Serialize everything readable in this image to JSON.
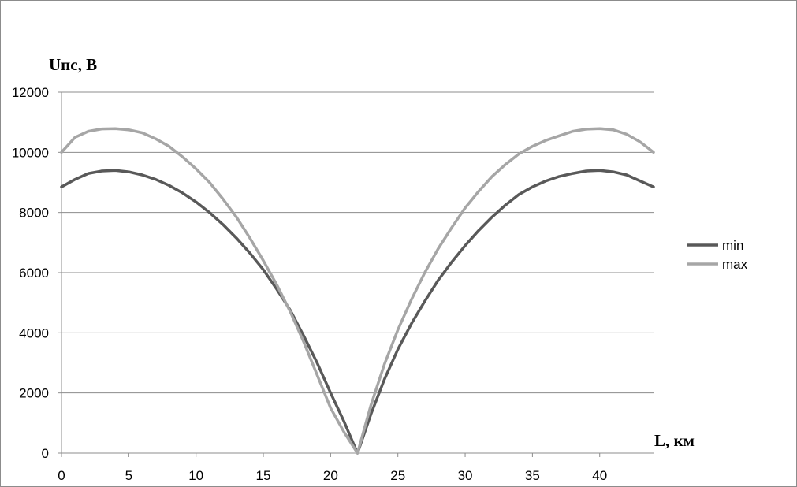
{
  "chart_data": {
    "type": "line",
    "title": "",
    "ylabel": "Uпс, В",
    "xlabel": "L, км",
    "xlim": [
      0,
      44
    ],
    "ylim": [
      0,
      12000
    ],
    "x_ticks": [
      0,
      5,
      10,
      15,
      20,
      25,
      30,
      35,
      40
    ],
    "y_ticks": [
      0,
      2000,
      4000,
      6000,
      8000,
      10000,
      12000
    ],
    "grid": "horizontal",
    "legend_position": "right",
    "series": [
      {
        "name": "min",
        "color": "#595959",
        "x": [
          0,
          1,
          2,
          3,
          4,
          5,
          6,
          7,
          8,
          9,
          10,
          11,
          12,
          13,
          14,
          15,
          16,
          17,
          18,
          19,
          20,
          21,
          22,
          23,
          24,
          25,
          26,
          27,
          28,
          29,
          30,
          31,
          32,
          33,
          34,
          35,
          36,
          37,
          38,
          39,
          40,
          41,
          42,
          43,
          44
        ],
        "values": [
          8850,
          9100,
          9300,
          9380,
          9400,
          9350,
          9250,
          9100,
          8900,
          8650,
          8350,
          8000,
          7600,
          7150,
          6650,
          6100,
          5450,
          4750,
          3900,
          3000,
          2000,
          1050,
          0,
          1300,
          2450,
          3450,
          4300,
          5050,
          5750,
          6350,
          6900,
          7400,
          7850,
          8250,
          8600,
          8850,
          9050,
          9200,
          9300,
          9380,
          9400,
          9350,
          9250,
          9050,
          8850
        ]
      },
      {
        "name": "max",
        "color": "#a6a6a6",
        "x": [
          0,
          1,
          2,
          3,
          4,
          5,
          6,
          7,
          8,
          9,
          10,
          11,
          12,
          13,
          14,
          15,
          16,
          17,
          18,
          19,
          20,
          21,
          22,
          23,
          24,
          25,
          26,
          27,
          28,
          29,
          30,
          31,
          32,
          33,
          34,
          35,
          36,
          37,
          38,
          39,
          40,
          41,
          42,
          43,
          44
        ],
        "values": [
          10000,
          10500,
          10700,
          10780,
          10790,
          10750,
          10650,
          10450,
          10200,
          9850,
          9450,
          9000,
          8450,
          7850,
          7150,
          6400,
          5600,
          4700,
          3700,
          2600,
          1500,
          700,
          0,
          1600,
          2950,
          4100,
          5100,
          6000,
          6800,
          7500,
          8150,
          8700,
          9200,
          9600,
          9950,
          10200,
          10400,
          10550,
          10700,
          10770,
          10790,
          10750,
          10600,
          10350,
          10000
        ]
      }
    ]
  }
}
